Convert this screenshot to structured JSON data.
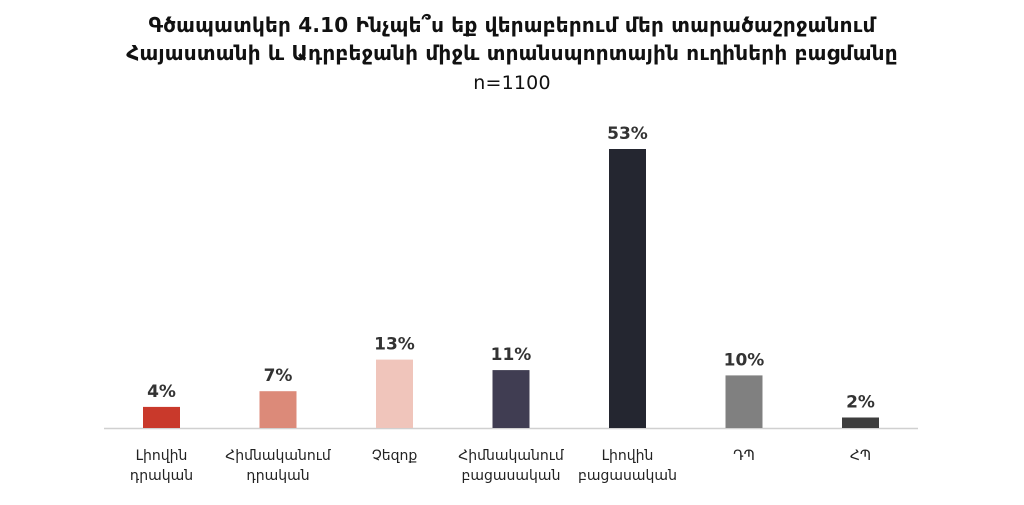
{
  "chart_data": {
    "type": "bar",
    "title": "Գծապատկեր 4.10 Ինչպե՞ս եք վերաբերում մեր տարածաշրջանում Հայաստանի և Ադրբեջանի միջև տրանսպորտային ուղիների բացմանը",
    "title_lines": [
      "Գծապատկեր 4.10 Ինչպե՞ս եք վերաբերում մեր տարածաշրջանում",
      "Հայաստանի և Ադրբեջանի միջև տրանսպորտային ուղիների բացմանը"
    ],
    "subtitle": "n=1100",
    "categories": [
      [
        "Լիովին",
        "դրական"
      ],
      [
        "Հիմնականում",
        "դրական"
      ],
      [
        "Չեզոք"
      ],
      [
        "Հիմնականում",
        "բացասական"
      ],
      [
        "Լիովին",
        "բացասական"
      ],
      [
        "ԴՊ"
      ],
      [
        "ՀՊ"
      ]
    ],
    "values": [
      4,
      7,
      13,
      11,
      53,
      10,
      2
    ],
    "value_labels": [
      "4%",
      "7%",
      "13%",
      "11%",
      "53%",
      "10%",
      "2%"
    ],
    "colors": [
      "#c9392b",
      "#dc8a79",
      "#f0c5bb",
      "#403d52",
      "#242630",
      "#808080",
      "#3d3d3d"
    ],
    "axis_color": "#d0d0d0",
    "xlabel": "",
    "ylabel": "",
    "ylim": [
      0,
      53
    ],
    "grid": false,
    "legend": "none"
  }
}
